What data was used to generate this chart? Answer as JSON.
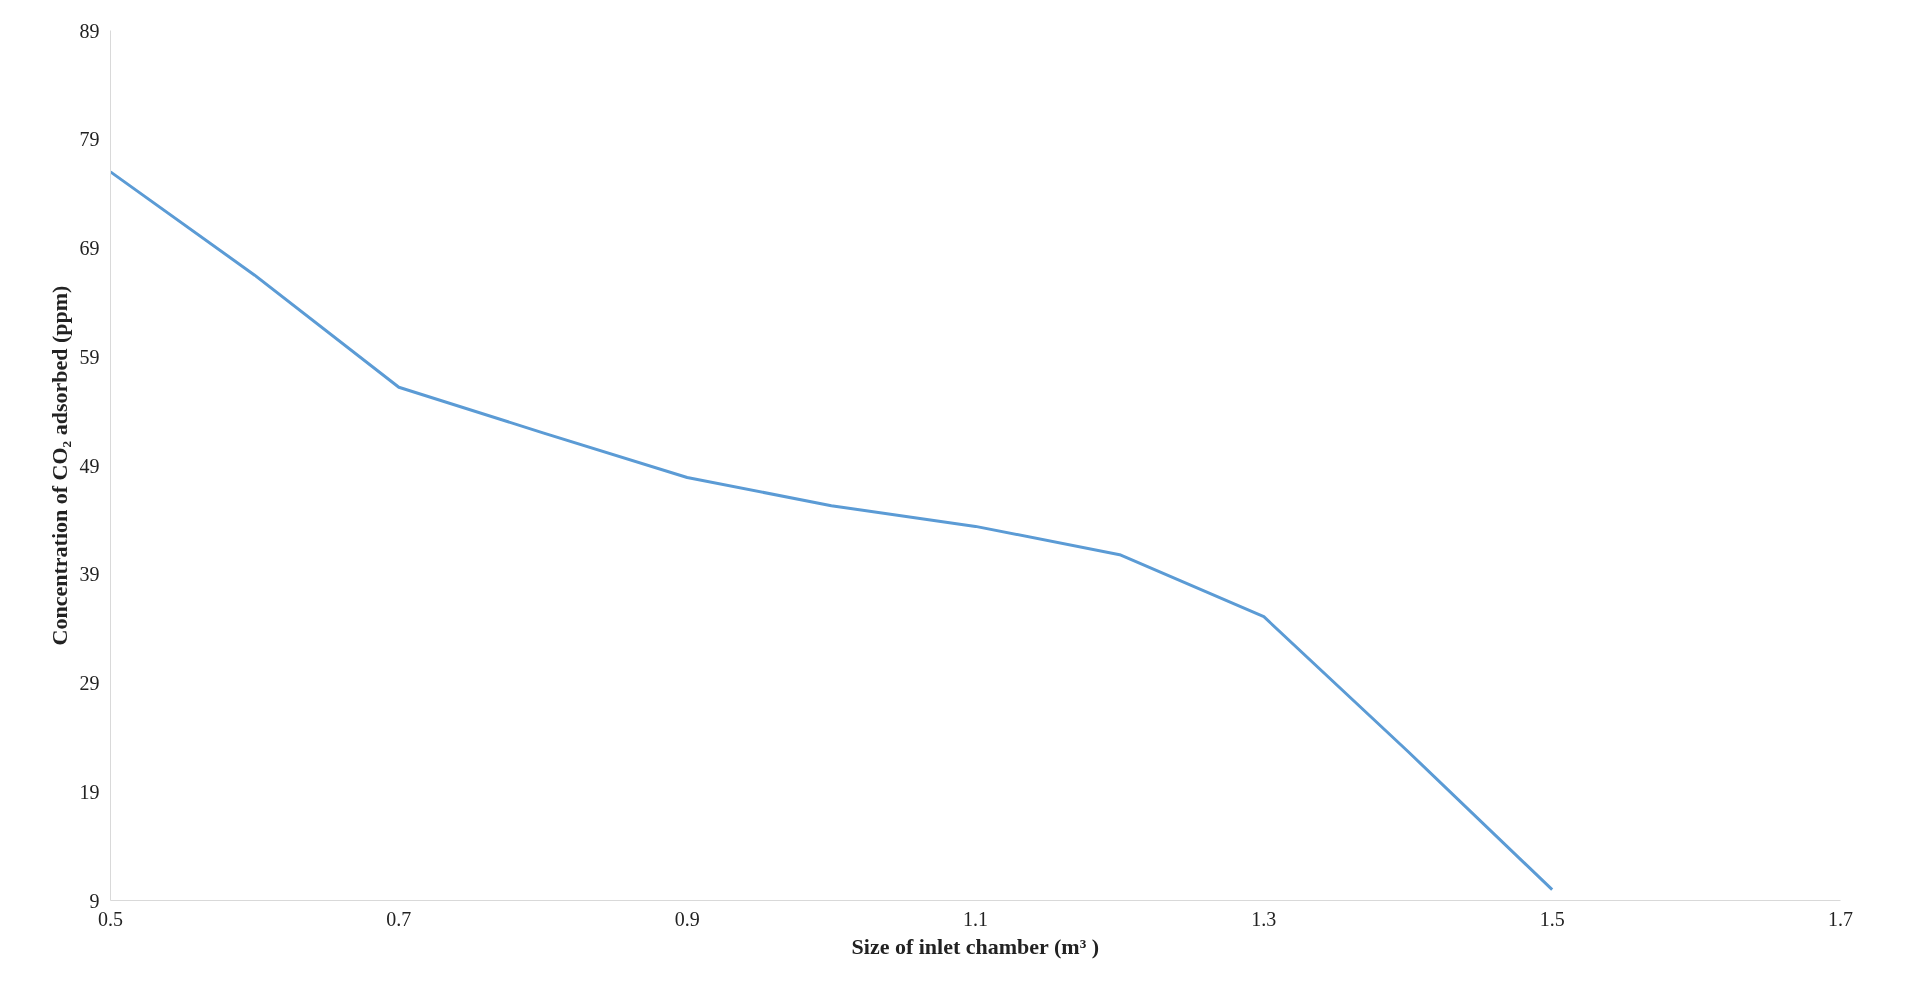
{
  "chart_data": {
    "type": "line",
    "xlabel": "Size of inlet chamber (m³ )",
    "ylabel": "Concentration of CO₂ adsorbed (ppm)",
    "x": [
      0.5,
      0.6,
      0.7,
      0.8,
      0.9,
      1.0,
      1.1,
      1.2,
      1.3,
      1.4,
      1.5
    ],
    "series": [
      {
        "color": "#5b9bd5",
        "values": [
          76,
          66.5,
          56.2,
          52,
          47.9,
          45.3,
          43.4,
          40.8,
          35.1,
          22.7,
          10
        ]
      }
    ],
    "xlim": [
      0.5,
      1.7
    ],
    "xticks": [
      0.5,
      0.7,
      0.9,
      1.1,
      1.3,
      1.5,
      1.7
    ],
    "ylim": [
      9,
      89
    ],
    "yticks": [
      9,
      19,
      29,
      39,
      49,
      59,
      69,
      79,
      89
    ],
    "grid": false,
    "marker": "none",
    "line_style": "solid"
  }
}
